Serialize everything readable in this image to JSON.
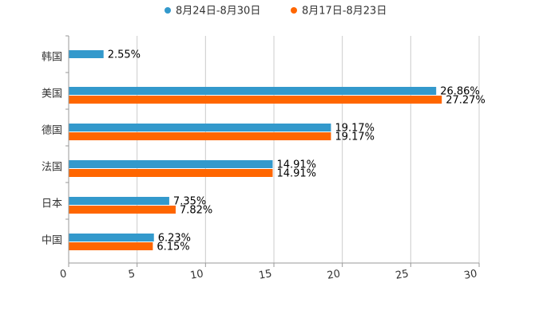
{
  "chart_data": {
    "type": "bar",
    "orientation": "horizontal",
    "title": "",
    "xlabel": "",
    "ylabel": "",
    "xlim": [
      0,
      30
    ],
    "ticks": [
      0,
      5,
      10,
      15,
      20,
      25,
      30
    ],
    "tick_labels": [
      "0",
      "5",
      "10",
      "15",
      "20",
      "25",
      "30"
    ],
    "grid": true,
    "legend_position": "top-center",
    "categories": [
      "韩国",
      "美国",
      "德国",
      "法国",
      "日本",
      "中国"
    ],
    "series": [
      {
        "name": "8月24日-8月30日",
        "color": "#3399cc",
        "values": [
          2.55,
          26.86,
          19.17,
          14.91,
          7.35,
          6.23
        ],
        "labels": [
          "2.55%",
          "26.86%",
          "19.17%",
          "14.91%",
          "7.35%",
          "6.23%"
        ]
      },
      {
        "name": "8月17日-8月23日",
        "color": "#ff6600",
        "values": [
          null,
          27.27,
          19.17,
          14.91,
          7.82,
          6.15
        ],
        "labels": [
          "",
          "27.27%",
          "19.17%",
          "14.91%",
          "7.82%",
          "6.15%"
        ]
      }
    ]
  }
}
